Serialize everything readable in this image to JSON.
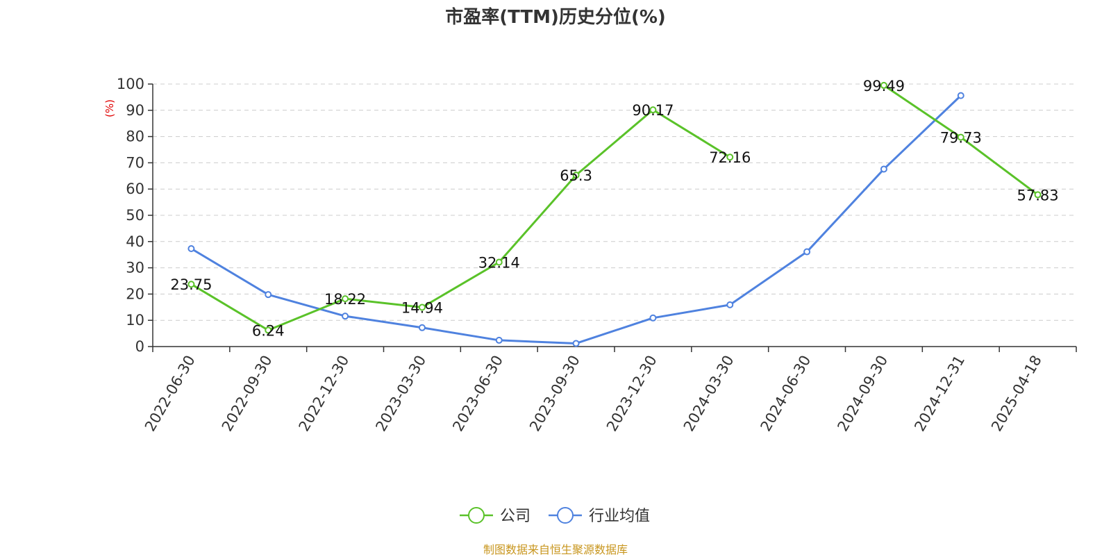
{
  "chart_data": {
    "type": "line",
    "title": "市盈率(TTM)历史分位(%)",
    "ylabel": "(%)",
    "ylim": [
      0,
      100
    ],
    "yticks": [
      0,
      10,
      20,
      30,
      40,
      50,
      60,
      70,
      80,
      90,
      100
    ],
    "grid": true,
    "legend_position": "bottom-center",
    "categories": [
      "2022-06-30",
      "2022-09-30",
      "2022-12-30",
      "2023-03-30",
      "2023-06-30",
      "2023-09-30",
      "2023-12-30",
      "2024-03-30",
      "2024-06-30",
      "2024-09-30",
      "2024-12-31",
      "2025-04-18"
    ],
    "series": [
      {
        "name": "公司",
        "color": "#5ac229",
        "values": [
          23.75,
          6.24,
          18.22,
          14.94,
          32.14,
          65.3,
          90.17,
          72.16,
          null,
          99.49,
          79.73,
          57.83
        ],
        "labels": [
          "23.75",
          "6.24",
          "18.22",
          "14.94",
          "32.14",
          "65.3",
          "90.17",
          "72.16",
          "",
          "99.49",
          "79.73",
          "57.83"
        ]
      },
      {
        "name": "行业均值",
        "color": "#4f82df",
        "values": [
          37.3,
          19.8,
          11.6,
          7.2,
          2.4,
          1.2,
          10.9,
          15.9,
          36.1,
          67.6,
          95.6,
          null
        ]
      }
    ]
  },
  "footer": {
    "source": "制图数据来自恒生聚源数据库",
    "color": "#c8961e"
  },
  "colors": {
    "axis": "#333333",
    "grid": "#cccccc",
    "ylabel": "#e00000"
  }
}
